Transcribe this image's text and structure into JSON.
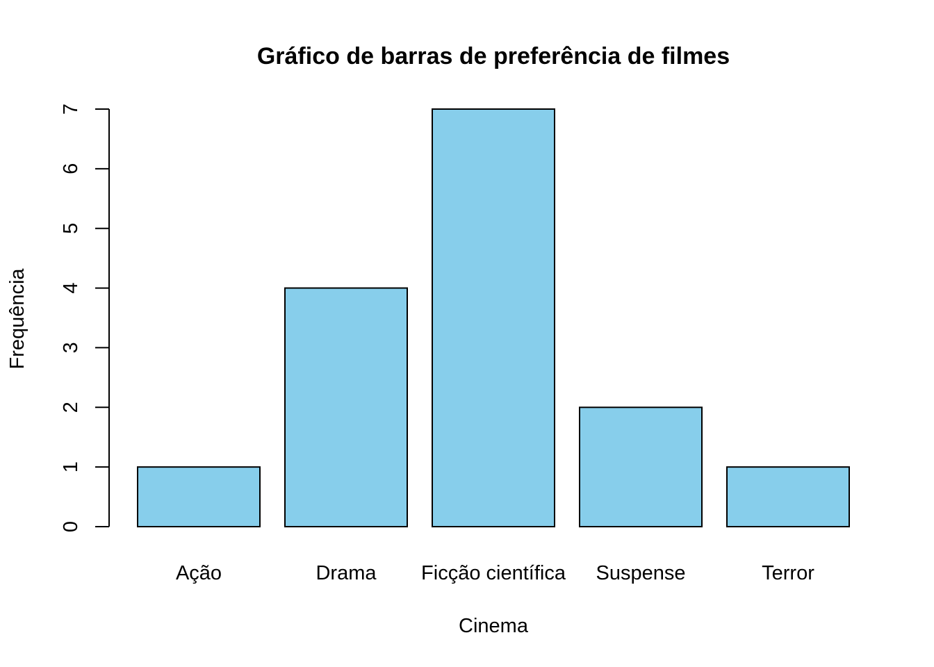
{
  "chart_data": {
    "type": "bar",
    "title": "Gráfico de barras de preferência de filmes",
    "xlabel": "Cinema",
    "ylabel": "Frequência",
    "categories": [
      "Ação",
      "Drama",
      "Ficção científica",
      "Suspense",
      "Terror"
    ],
    "values": [
      1,
      4,
      7,
      2,
      1
    ],
    "ylim": [
      0,
      7
    ],
    "yticks": [
      "0",
      "1",
      "2",
      "3",
      "4",
      "5",
      "6",
      "7"
    ],
    "bar_color": "#87CEEB",
    "grid": false,
    "legend": "none"
  }
}
